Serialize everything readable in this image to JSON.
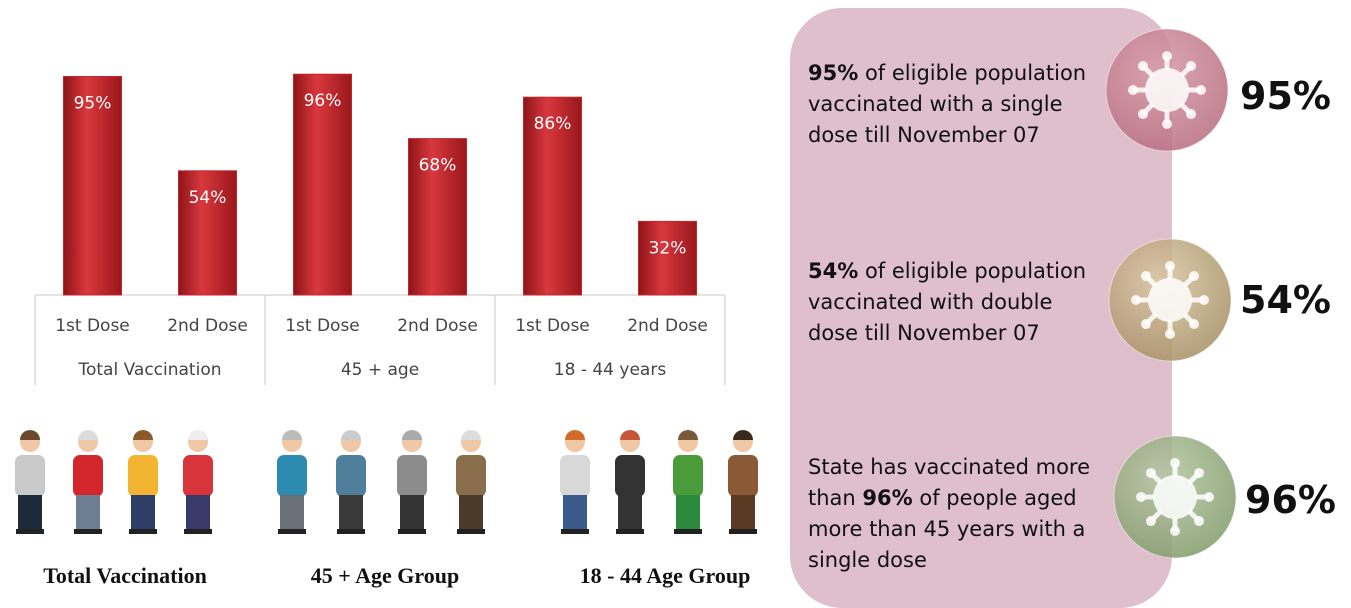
{
  "chart_data": {
    "type": "bar",
    "categories": [
      "1st Dose",
      "2nd Dose",
      "1st Dose",
      "2nd Dose",
      "1st Dose",
      "2nd Dose"
    ],
    "groups": [
      "Total Vaccination",
      "45 + age",
      "18 - 44 years"
    ],
    "values": [
      95,
      54,
      96,
      68,
      86,
      32
    ],
    "value_labels": [
      "95%",
      "54%",
      "96%",
      "68%",
      "86%",
      "32%"
    ],
    "color": "#c3262c"
  },
  "people_captions": [
    "Total Vaccination",
    "45 + Age Group",
    "18 - 44 Age Group"
  ],
  "panel": {
    "items": [
      {
        "parts": [
          {
            "text": "95%",
            "bold": true
          },
          {
            "text": " of eligible population vaccinated with a single dose till November 07",
            "bold": false
          }
        ],
        "figure": "95%"
      },
      {
        "parts": [
          {
            "text": "54%",
            "bold": true
          },
          {
            "text": " of eligible population vaccinated with double dose till November 07",
            "bold": false
          }
        ],
        "figure": "54%"
      },
      {
        "parts": [
          {
            "text": "State has vaccinated more than ",
            "bold": false
          },
          {
            "text": "96%",
            "bold": true
          },
          {
            "text": " of people aged more than 45 years with a single dose",
            "bold": false
          }
        ],
        "figure": "96%"
      }
    ]
  }
}
